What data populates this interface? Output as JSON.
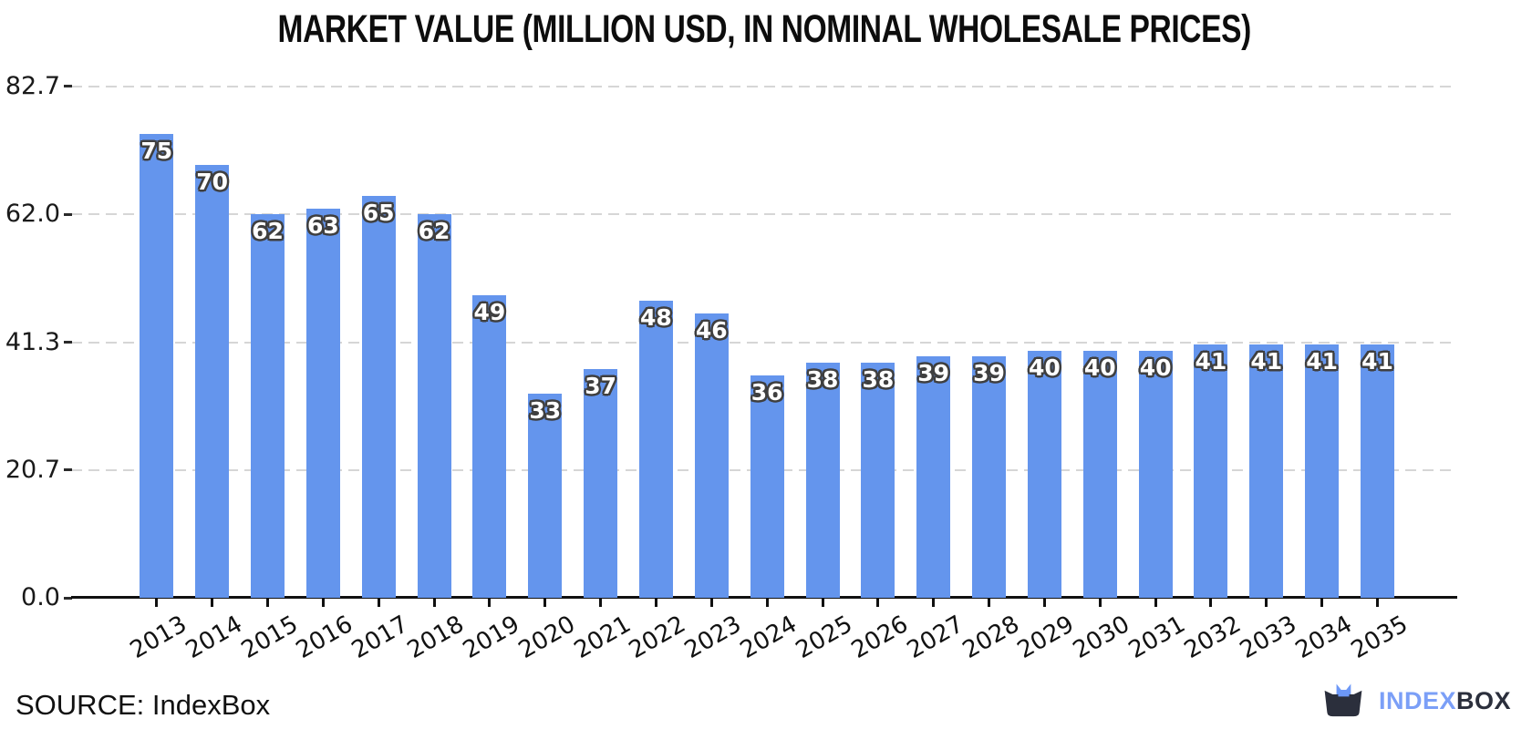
{
  "chart_data": {
    "type": "bar",
    "title": "MARKET VALUE (MILLION USD, IN NOMINAL WHOLESALE PRICES)",
    "categories": [
      "2013",
      "2014",
      "2015",
      "2016",
      "2017",
      "2018",
      "2019",
      "2020",
      "2021",
      "2022",
      "2023",
      "2024",
      "2025",
      "2026",
      "2027",
      "2028",
      "2029",
      "2030",
      "2031",
      "2032",
      "2033",
      "2034",
      "2035"
    ],
    "values": [
      75,
      70,
      62,
      63,
      65,
      62,
      49,
      33,
      37,
      48,
      46,
      36,
      38,
      38,
      39,
      39,
      40,
      40,
      40,
      41,
      41,
      41,
      41
    ],
    "bar_labels": [
      "75",
      "70",
      "62",
      "63",
      "65",
      "62",
      "49",
      "33",
      "37",
      "48",
      "46",
      "36",
      "38",
      "38",
      "39",
      "39",
      "40",
      "40",
      "40",
      "41",
      "41",
      "41",
      "41"
    ],
    "xlabel": "",
    "ylabel": "",
    "ylim": [
      0,
      82.7
    ],
    "yticks": {
      "values": [
        0,
        20.7,
        41.3,
        62.0,
        82.7
      ],
      "labels": [
        "0.0",
        "20.7",
        "41.3",
        "62.0",
        "82.7"
      ]
    },
    "grid": "horizontal-dashed",
    "legend": "none",
    "colors": {
      "bar": "#6495ED",
      "bar_label_fill": "#ffffff",
      "bar_label_outline": "#3f3f3f",
      "gridline": "#d6d6d6",
      "axis": "#111111",
      "text": "#1a1a1a"
    }
  },
  "footer": {
    "source": "SOURCE: IndexBox",
    "logo": {
      "primary": "INDEX",
      "secondary": "BOX",
      "primary_color": "#7b9ff7",
      "secondary_color": "#2b2f3c",
      "icon": "indexbox-box-cat-icon",
      "icon_dark": "#2b2f3c",
      "icon_blue": "#6d98f7"
    }
  }
}
